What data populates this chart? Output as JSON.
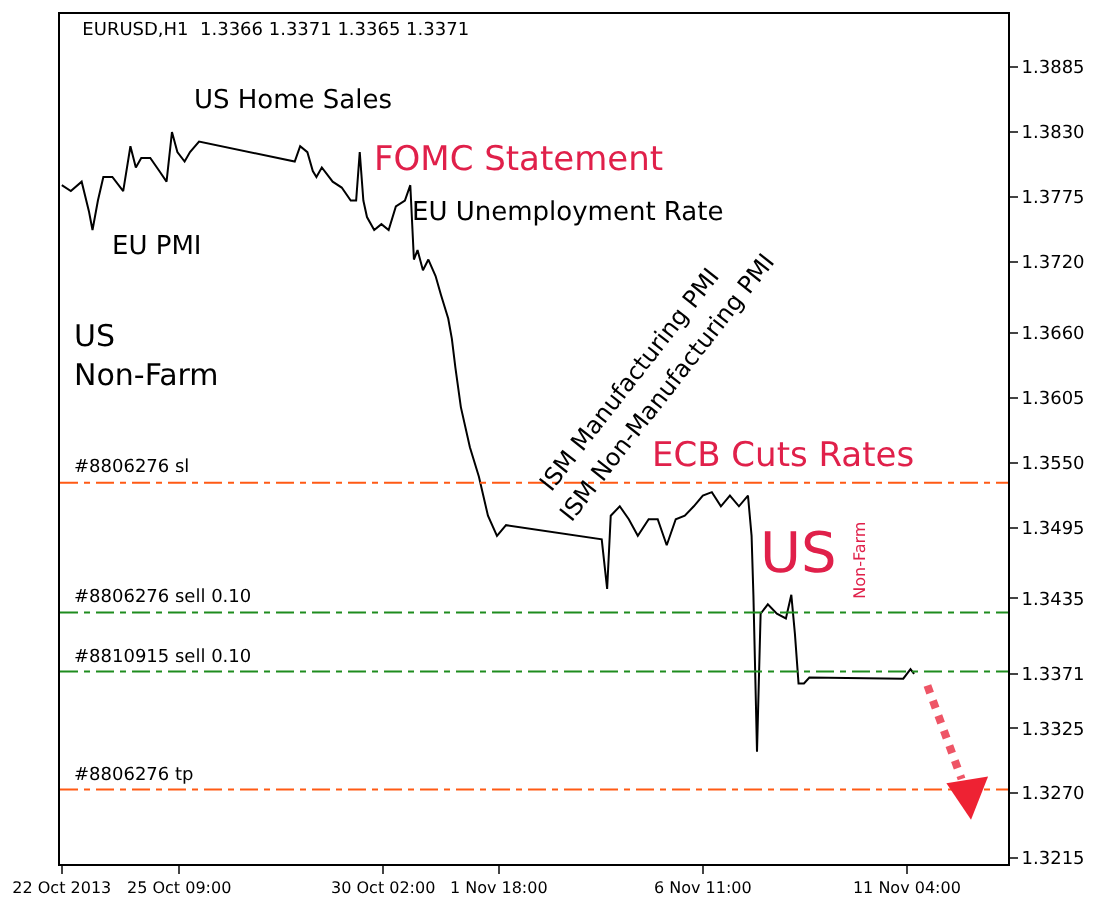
{
  "chart_data": {
    "type": "line",
    "title": "EURUSD,H1  1.3366 1.3371 1.3365 1.3371",
    "x": [
      "2013-10-22T16:00",
      "2013-10-22T21:00",
      "2013-10-23T03:00",
      "2013-10-23T07:00",
      "2013-10-23T09:00",
      "2013-10-23T12:00",
      "2013-10-23T15:00",
      "2013-10-23T20:00",
      "2013-10-24T02:00",
      "2013-10-24T06:00",
      "2013-10-24T09:00",
      "2013-10-24T12:00",
      "2013-10-24T17:00",
      "2013-10-24T22:00",
      "2013-10-25T02:00",
      "2013-10-25T05:00",
      "2013-10-25T08:00",
      "2013-10-25T12:00",
      "2013-10-25T15:00",
      "2013-10-25T20:00",
      "2013-10-28T01:00",
      "2013-10-28T04:00",
      "2013-10-28T08:00",
      "2013-10-28T11:00",
      "2013-10-28T13:00",
      "2013-10-28T16:00",
      "2013-10-28T22:00",
      "2013-10-29T03:00",
      "2013-10-29T08:00",
      "2013-10-29T11:00",
      "2013-10-29T13:00",
      "2013-10-29T15:00",
      "2013-10-29T17:00",
      "2013-10-29T21:00",
      "2013-10-30T01:00",
      "2013-10-30T05:00",
      "2013-10-30T09:00",
      "2013-10-30T14:00",
      "2013-10-30T17:00",
      "2013-10-30T19:00",
      "2013-10-30T21:00",
      "2013-10-31T00:00",
      "2013-10-31T03:00",
      "2013-10-31T07:00",
      "2013-10-31T10:00",
      "2013-10-31T14:00",
      "2013-10-31T16:00",
      "2013-10-31T18:00",
      "2013-10-31T21:00",
      "2013-11-01T02:00",
      "2013-11-01T07:00",
      "2013-11-01T12:00",
      "2013-11-01T17:00",
      "2013-11-01T22:00",
      "2013-11-04T03:00",
      "2013-11-04T06:00",
      "2013-11-04T08:00",
      "2013-11-04T13:00",
      "2013-11-04T18:00",
      "2013-11-04T23:00",
      "2013-11-05T05:00",
      "2013-11-05T10:00",
      "2013-11-05T15:00",
      "2013-11-05T20:00",
      "2013-11-06T01:00",
      "2013-11-06T06:00",
      "2013-11-06T11:00",
      "2013-11-06T16:00",
      "2013-11-06T21:00",
      "2013-11-07T02:00",
      "2013-11-07T07:00",
      "2013-11-07T12:00",
      "2013-11-07T14:00",
      "2013-11-07T15:00",
      "2013-11-07T16:00",
      "2013-11-07T17:00",
      "2013-11-07T19:00",
      "2013-11-07T23:00",
      "2013-11-08T04:00",
      "2013-11-08T09:00",
      "2013-11-08T12:00",
      "2013-11-08T14:00",
      "2013-11-08T16:00",
      "2013-11-08T19:00",
      "2013-11-08T22:00",
      "2013-11-11T02:00",
      "2013-11-11T06:00",
      "2013-11-11T08:00"
    ],
    "series": [
      {
        "color": "#000000",
        "values": [
          1.3785,
          1.378,
          1.3788,
          1.3763,
          1.3747,
          1.3772,
          1.3792,
          1.3792,
          1.378,
          1.3818,
          1.38,
          1.3808,
          1.3808,
          1.3797,
          1.3788,
          1.383,
          1.3813,
          1.3805,
          1.3813,
          1.3822,
          1.3805,
          1.3818,
          1.3813,
          1.3797,
          1.3792,
          1.38,
          1.3788,
          1.3783,
          1.3772,
          1.3772,
          1.3813,
          1.3772,
          1.3758,
          1.3747,
          1.3752,
          1.3747,
          1.3767,
          1.3772,
          1.3785,
          1.3722,
          1.373,
          1.3713,
          1.3722,
          1.3708,
          1.3692,
          1.3672,
          1.3655,
          1.363,
          1.3597,
          1.3563,
          1.3538,
          1.3505,
          1.3488,
          1.3497,
          1.3485,
          1.3443,
          1.3505,
          1.3513,
          1.3502,
          1.3488,
          1.3502,
          1.3502,
          1.348,
          1.3502,
          1.3505,
          1.3513,
          1.3522,
          1.3525,
          1.3513,
          1.3522,
          1.3513,
          1.3522,
          1.3488,
          1.3438,
          1.3372,
          1.3305,
          1.3422,
          1.343,
          1.3422,
          1.3418,
          1.3438,
          1.3405,
          1.3363,
          1.3363,
          1.3368,
          1.3367,
          1.3375,
          1.3371
        ]
      }
    ],
    "xlim": [
      "2013-10-22T15:00",
      "2013-11-13T12:00"
    ],
    "xticks": [
      {
        "value": "2013-10-22T16:00",
        "label": "22 Oct 2013"
      },
      {
        "value": "2013-10-25T09:00",
        "label": "25 Oct 09:00"
      },
      {
        "value": "2013-10-30T02:00",
        "label": "30 Oct 02:00"
      },
      {
        "value": "2013-11-01T18:00",
        "label": "1 Nov 18:00"
      },
      {
        "value": "2013-11-06T11:00",
        "label": "6 Nov 11:00"
      },
      {
        "value": "2013-11-11T04:00",
        "label": "11 Nov 04:00"
      }
    ],
    "ylim": [
      1.321,
      1.393
    ],
    "yticks": [
      1.3215,
      {
        "value": 1.327,
        "label": "1.3270"
      },
      1.3325,
      1.3371,
      1.3435,
      1.3495,
      {
        "value": 1.355,
        "label": "1.3550"
      },
      1.3605,
      {
        "value": 1.366,
        "label": "1.3660"
      },
      {
        "value": 1.372,
        "label": "1.3720"
      },
      1.3775,
      {
        "value": 1.383,
        "label": "1.3830"
      },
      1.3885
    ],
    "ref_lines": [
      {
        "axis": "y",
        "value": 1.3533,
        "label": "#8806276 sl",
        "color": "#ff5a14",
        "line_style": "dashdot"
      },
      {
        "axis": "y",
        "value": 1.3423,
        "label": "#8806276 sell 0.10",
        "color": "#1e8c1e",
        "line_style": "dashdot"
      },
      {
        "axis": "y",
        "value": 1.3373,
        "label": "#8810915 sell 0.10",
        "color": "#1e8c1e",
        "line_style": "dashdot"
      },
      {
        "axis": "y",
        "value": 1.3273,
        "label": "#8806276 tp",
        "color": "#ff5a14",
        "line_style": "dashdot"
      }
    ],
    "annotations": [
      "US Home Sales",
      "FOMC Statement",
      "EU Unemployment Rate",
      "EU PMI",
      "US\nNon-Farm",
      "ISM Manufacturing PMI",
      "ISM Non-Manufacturing PMI",
      "ECB Cuts Rates",
      "US",
      "Non-Farm"
    ],
    "marker": "none",
    "line_style": "solid"
  }
}
